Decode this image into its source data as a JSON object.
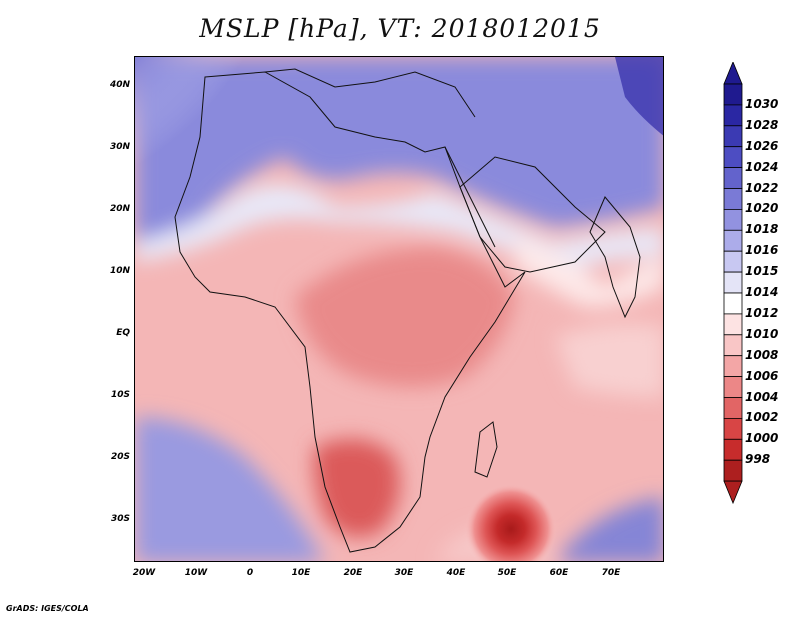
{
  "title": "MSLP [hPa], VT: 2018012015",
  "credit": "GrADS: IGES/COLA",
  "lat_labels": [
    "40N",
    "30N",
    "20N",
    "10N",
    "EQ",
    "10S",
    "20S",
    "30S"
  ],
  "lon_labels": [
    "20W",
    "10W",
    "0",
    "10E",
    "20E",
    "30E",
    "40E",
    "50E",
    "60E",
    "70E"
  ],
  "colorbar": {
    "labels": [
      "1030",
      "1028",
      "1026",
      "1024",
      "1022",
      "1020",
      "1018",
      "1016",
      "1015",
      "1014",
      "1012",
      "1010",
      "1008",
      "1006",
      "1004",
      "1002",
      "1000",
      "998"
    ],
    "colors": [
      "#1f1a8f",
      "#2a27a3",
      "#3b3ab3",
      "#4d4dc2",
      "#6363cc",
      "#7a7ad6",
      "#9292e0",
      "#acacea",
      "#c8c8f2",
      "#e4e4f7",
      "#ffffff",
      "#fde3e3",
      "#f9c6c6",
      "#f3a6a6",
      "#ec8787",
      "#e26565",
      "#d84545",
      "#c72c2c",
      "#ad1f1f"
    ],
    "top_color": "#1f1a8f",
    "bottom_color": "#ad1f1f"
  }
}
